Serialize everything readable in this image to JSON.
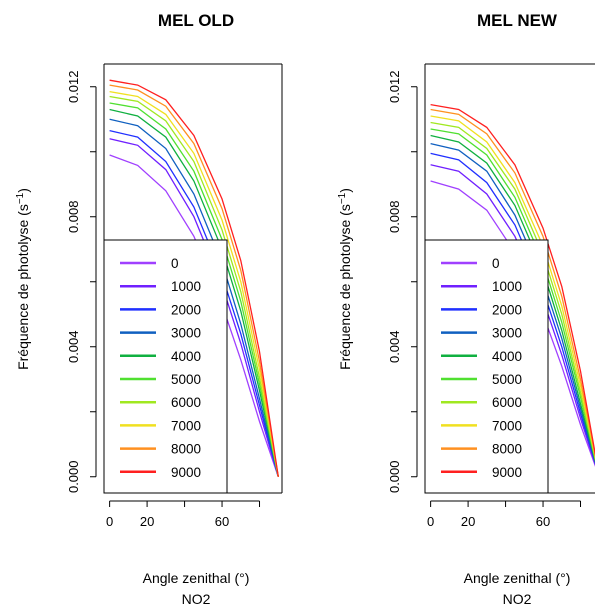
{
  "chart_data": [
    {
      "type": "line",
      "title": "MEL OLD",
      "xlabel": "Angle zenithal (°)",
      "xlabel_sub": "NO2",
      "ylabel": "Fréquence de photolyse (s",
      "ylabel_sup": "−1",
      "ylabel_end": ")",
      "xlim": [
        -3,
        92
      ],
      "ylim": [
        -0.0005,
        0.0127
      ],
      "xticks": [
        0,
        20,
        60
      ],
      "yticks": [
        0.0,
        0.004,
        0.008,
        0.012
      ],
      "ytick_labels": [
        "0.000",
        "0.004",
        "0.008",
        "0.012"
      ],
      "legend_position": "bottom-left",
      "x": [
        0,
        15,
        30,
        45,
        60,
        70,
        80,
        90
      ],
      "series": [
        {
          "name": "0",
          "color": "#a040ff",
          "values": [
            0.0099,
            0.00958,
            0.0088,
            0.0074,
            0.0053,
            0.0036,
            0.0017,
            0.0
          ]
        },
        {
          "name": "1000",
          "color": "#7020ff",
          "values": [
            0.0104,
            0.0102,
            0.00945,
            0.008,
            0.0059,
            0.0041,
            0.002,
            0.0
          ]
        },
        {
          "name": "2000",
          "color": "#2030ff",
          "values": [
            0.01065,
            0.01045,
            0.0097,
            0.0083,
            0.0062,
            0.0044,
            0.0022,
            0.0
          ]
        },
        {
          "name": "3000",
          "color": "#1060c0",
          "values": [
            0.011,
            0.0108,
            0.0101,
            0.0087,
            0.0066,
            0.0047,
            0.0024,
            0.0
          ]
        },
        {
          "name": "4000",
          "color": "#10b040",
          "values": [
            0.0113,
            0.0111,
            0.01045,
            0.0091,
            0.007,
            0.0051,
            0.00265,
            0.0
          ]
        },
        {
          "name": "5000",
          "color": "#50e030",
          "values": [
            0.0115,
            0.01135,
            0.0107,
            0.0094,
            0.0073,
            0.0054,
            0.00285,
            0.0
          ]
        },
        {
          "name": "6000",
          "color": "#a0e820",
          "values": [
            0.0117,
            0.01155,
            0.01095,
            0.0097,
            0.0076,
            0.0057,
            0.00305,
            0.0
          ]
        },
        {
          "name": "7000",
          "color": "#f0e020",
          "values": [
            0.01185,
            0.0117,
            0.01115,
            0.00995,
            0.0079,
            0.006,
            0.0033,
            0.0
          ]
        },
        {
          "name": "8000",
          "color": "#ff9020",
          "values": [
            0.01205,
            0.0119,
            0.0114,
            0.01025,
            0.00825,
            0.00635,
            0.00355,
            0.0
          ]
        },
        {
          "name": "9000",
          "color": "#ff2020",
          "values": [
            0.0122,
            0.01205,
            0.0116,
            0.0105,
            0.00855,
            0.00665,
            0.00385,
            0.0
          ]
        }
      ]
    },
    {
      "type": "line",
      "title": "MEL NEW",
      "xlabel": "Angle zenithal (°)",
      "xlabel_sub": "NO2",
      "ylabel": "Fréquence de photolyse (s",
      "ylabel_sup": "−1",
      "ylabel_end": ")",
      "xlim": [
        -3,
        92
      ],
      "ylim": [
        -0.0005,
        0.0127
      ],
      "xticks": [
        0,
        20,
        60
      ],
      "yticks": [
        0.0,
        0.004,
        0.008,
        0.012
      ],
      "ytick_labels": [
        "0.000",
        "0.004",
        "0.008",
        "0.012"
      ],
      "legend_position": "bottom-left",
      "x": [
        0,
        15,
        30,
        45,
        60,
        70,
        80,
        90
      ],
      "series": [
        {
          "name": "0",
          "color": "#a040ff",
          "values": [
            0.0091,
            0.00885,
            0.0082,
            0.0069,
            0.005,
            0.0034,
            0.0016,
            0.0
          ]
        },
        {
          "name": "1000",
          "color": "#7020ff",
          "values": [
            0.0096,
            0.0094,
            0.0087,
            0.0074,
            0.00545,
            0.00375,
            0.0018,
            0.0
          ]
        },
        {
          "name": "2000",
          "color": "#2030ff",
          "values": [
            0.00995,
            0.00975,
            0.00905,
            0.00775,
            0.00575,
            0.004,
            0.00195,
            0.0
          ]
        },
        {
          "name": "3000",
          "color": "#1060c0",
          "values": [
            0.01025,
            0.01005,
            0.0094,
            0.00805,
            0.00605,
            0.00425,
            0.0021,
            0.0
          ]
        },
        {
          "name": "4000",
          "color": "#10b040",
          "values": [
            0.0105,
            0.0103,
            0.00965,
            0.00835,
            0.00635,
            0.0045,
            0.00225,
            0.0
          ]
        },
        {
          "name": "5000",
          "color": "#50e030",
          "values": [
            0.0107,
            0.01055,
            0.0099,
            0.0086,
            0.0066,
            0.00475,
            0.00245,
            0.0
          ]
        },
        {
          "name": "6000",
          "color": "#a0e820",
          "values": [
            0.0109,
            0.01075,
            0.0101,
            0.00885,
            0.00685,
            0.005,
            0.0026,
            0.0
          ]
        },
        {
          "name": "7000",
          "color": "#f0e020",
          "values": [
            0.0111,
            0.01095,
            0.0103,
            0.00905,
            0.0071,
            0.00525,
            0.0028,
            0.0
          ]
        },
        {
          "name": "8000",
          "color": "#ff9020",
          "values": [
            0.0113,
            0.01115,
            0.01055,
            0.00935,
            0.0074,
            0.00555,
            0.003,
            0.0
          ]
        },
        {
          "name": "9000",
          "color": "#ff2020",
          "values": [
            0.01145,
            0.0113,
            0.01075,
            0.0096,
            0.00765,
            0.00585,
            0.00325,
            0.0
          ]
        }
      ]
    }
  ]
}
